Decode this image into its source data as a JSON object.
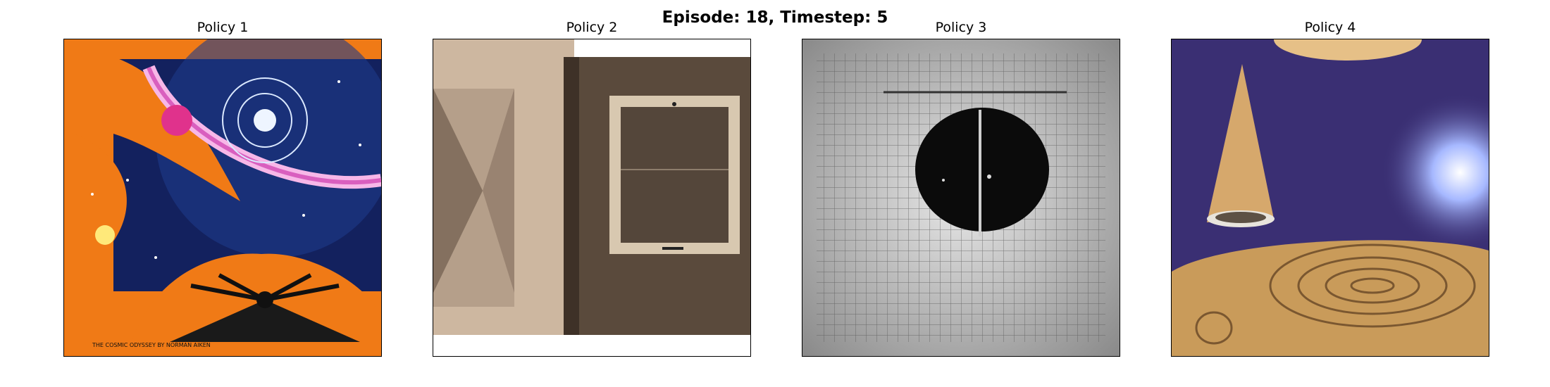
{
  "figure": {
    "suptitle": "Episode: 18, Timestep: 5"
  },
  "panels": [
    {
      "title": "Policy 1"
    },
    {
      "title": "Policy 2"
    },
    {
      "title": "Policy 3"
    },
    {
      "title": "Policy 4"
    }
  ],
  "poster_text": "THE COSMIC ODYSSEY BY NORMAN AIKEN"
}
